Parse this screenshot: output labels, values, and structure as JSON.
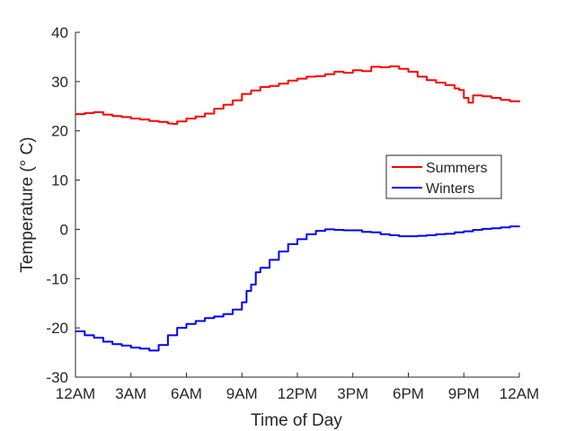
{
  "chart_data": {
    "type": "line",
    "xlabel": "Time of Day",
    "ylabel": "Temperature (° C)",
    "xlim": [
      0,
      24
    ],
    "ylim": [
      -30,
      40
    ],
    "x_ticks": [
      {
        "value": 0,
        "label": "12AM"
      },
      {
        "value": 3,
        "label": "3AM"
      },
      {
        "value": 6,
        "label": "6AM"
      },
      {
        "value": 9,
        "label": "9AM"
      },
      {
        "value": 12,
        "label": "12PM"
      },
      {
        "value": 15,
        "label": "3PM"
      },
      {
        "value": 18,
        "label": "6PM"
      },
      {
        "value": 21,
        "label": "9PM"
      },
      {
        "value": 24,
        "label": "12AM"
      }
    ],
    "y_ticks": [
      -30,
      -20,
      -10,
      0,
      10,
      20,
      30,
      40
    ],
    "grid": false,
    "legend_position": "right",
    "series": [
      {
        "name": "Summers",
        "color": "#ff0000",
        "x": [
          0,
          0.5,
          1,
          1.5,
          2,
          2.5,
          3,
          3.5,
          4,
          4.5,
          5,
          5.25,
          5.5,
          6,
          6.5,
          7,
          7.5,
          8,
          8.5,
          9,
          9.5,
          10,
          10.5,
          11,
          11.5,
          12,
          12.5,
          13,
          13.5,
          14,
          14.5,
          15,
          15.5,
          16,
          16.5,
          17,
          17.5,
          18,
          18.5,
          19,
          19.5,
          20,
          20.5,
          20.75,
          21,
          21.25,
          21.5,
          22,
          22.5,
          23,
          23.5,
          24
        ],
        "y": [
          23.4,
          23.6,
          23.8,
          23.3,
          23.0,
          22.8,
          22.5,
          22.3,
          22.0,
          21.8,
          21.5,
          21.4,
          21.9,
          22.5,
          22.9,
          23.5,
          24.5,
          25.3,
          26.2,
          27.5,
          28.2,
          28.9,
          29.1,
          29.6,
          30.2,
          30.6,
          31.0,
          31.1,
          31.5,
          32.0,
          31.8,
          32.3,
          32.1,
          33.0,
          32.9,
          33.1,
          32.6,
          32.0,
          31.0,
          30.3,
          29.8,
          29.3,
          28.6,
          28.3,
          26.7,
          25.7,
          27.2,
          27.0,
          26.7,
          26.3,
          26.0,
          25.8
        ]
      },
      {
        "name": "Winters",
        "color": "#0000ff",
        "x": [
          0,
          0.5,
          1,
          1.5,
          2,
          2.5,
          3,
          3.5,
          4,
          4.5,
          5,
          5.5,
          6,
          6.5,
          7,
          7.5,
          8,
          8.5,
          9,
          9.25,
          9.5,
          9.75,
          10,
          10.5,
          11,
          11.5,
          12,
          12.5,
          13,
          13.5,
          14,
          14.5,
          15,
          15.5,
          16,
          16.5,
          17,
          17.5,
          18,
          18.5,
          19,
          19.5,
          20,
          20.5,
          21,
          21.5,
          22,
          22.5,
          23,
          23.5,
          24
        ],
        "y": [
          -20.7,
          -21.5,
          -22.0,
          -22.8,
          -23.3,
          -23.6,
          -24.0,
          -24.2,
          -24.6,
          -23.5,
          -21.5,
          -20.0,
          -19.2,
          -18.6,
          -18.0,
          -17.7,
          -17.2,
          -16.3,
          -14.8,
          -12.5,
          -11.2,
          -8.7,
          -7.8,
          -6.2,
          -4.5,
          -3.0,
          -2.0,
          -1.0,
          -0.3,
          0.0,
          -0.1,
          -0.2,
          -0.2,
          -0.5,
          -0.6,
          -1.0,
          -1.2,
          -1.4,
          -1.4,
          -1.3,
          -1.2,
          -1.0,
          -0.9,
          -0.6,
          -0.4,
          -0.1,
          0.1,
          0.2,
          0.4,
          0.6,
          0.7
        ]
      }
    ]
  }
}
